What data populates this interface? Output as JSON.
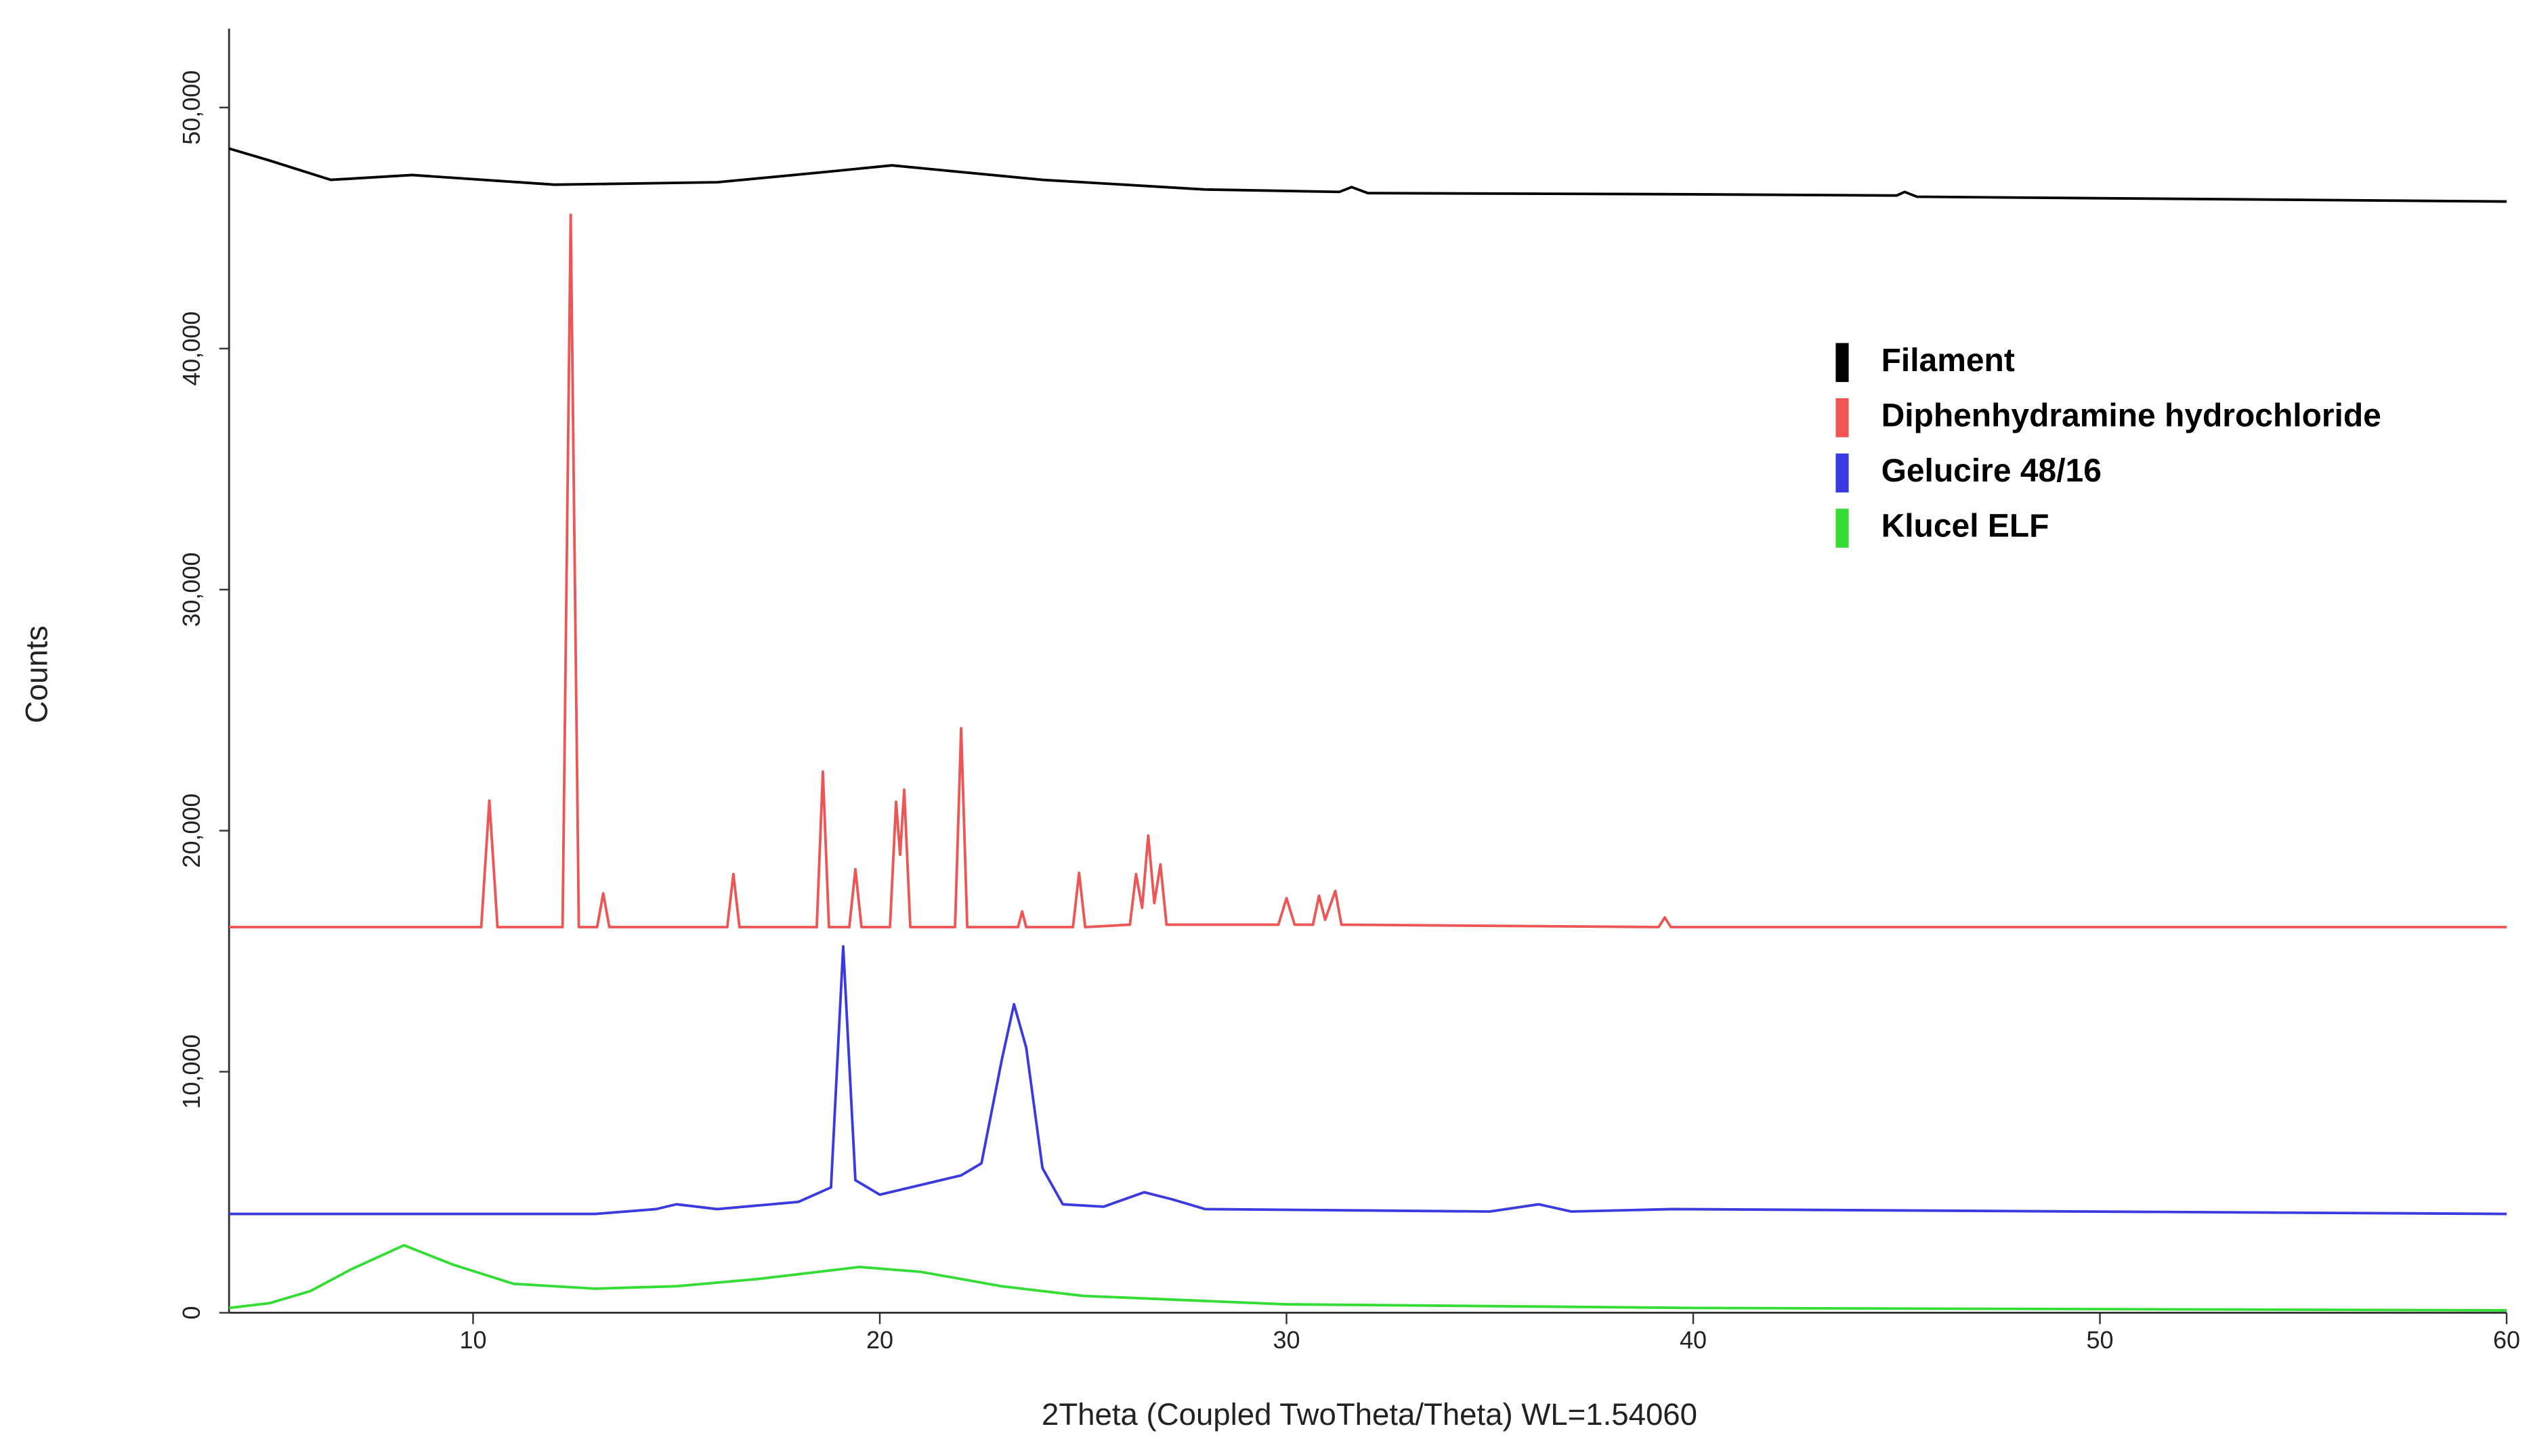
{
  "chart_data": {
    "type": "line",
    "xlabel": "2Theta (Coupled TwoTheta/Theta) WL=1.54060",
    "ylabel": "Counts",
    "xlim": [
      4,
      60
    ],
    "xticks": [
      10,
      20,
      30,
      40,
      50,
      60
    ],
    "ylim": [
      0,
      53000
    ],
    "yticks": [
      0,
      {
        "value": 10000,
        "label": "10,000"
      },
      {
        "value": 20000,
        "label": "20,000"
      },
      {
        "value": 30000,
        "label": "30,000"
      },
      {
        "value": 40000,
        "label": "40,000"
      },
      {
        "value": 50000,
        "label": "50,000"
      }
    ],
    "legend": "upper right",
    "series": [
      {
        "name": "Filament",
        "color": "#000000",
        "x": [
          4,
          5,
          6.5,
          8.5,
          12,
          16,
          18.5,
          20.3,
          24,
          28,
          31.3,
          31.6,
          32,
          40,
          45,
          45.2,
          45.5,
          60
        ],
        "values": [
          48300,
          47800,
          47000,
          47200,
          46800,
          46900,
          47300,
          47600,
          47000,
          46600,
          46500,
          46700,
          46450,
          46400,
          46350,
          46500,
          46300,
          46100
        ]
      },
      {
        "name": "Diphenhydramine hydrochloride",
        "color": "#ee5555",
        "x": [
          4,
          10.2,
          10.4,
          10.6,
          12.2,
          12.4,
          12.6,
          13.05,
          13.2,
          13.35,
          16.25,
          16.4,
          16.55,
          18.45,
          18.6,
          18.75,
          19.25,
          19.4,
          19.55,
          20.25,
          20.4,
          20.5,
          20.6,
          20.75,
          21.85,
          22.0,
          22.15,
          23.4,
          23.5,
          23.6,
          24.75,
          24.9,
          25.05,
          26.15,
          26.3,
          26.45,
          26.6,
          26.75,
          26.9,
          27.05,
          29.8,
          30.0,
          30.2,
          30.65,
          30.8,
          30.95,
          31.2,
          31.35,
          39.15,
          39.3,
          39.45,
          60
        ],
        "values": [
          16000,
          16000,
          21250,
          16000,
          16000,
          45550,
          16000,
          16000,
          17400,
          16000,
          16000,
          18200,
          16000,
          16000,
          22450,
          16000,
          16000,
          18400,
          16000,
          16000,
          21200,
          19000,
          21700,
          16000,
          16000,
          24250,
          16000,
          16000,
          16650,
          16000,
          16000,
          18250,
          16000,
          16100,
          18200,
          16800,
          19800,
          17000,
          18600,
          16100,
          16100,
          17200,
          16100,
          16100,
          17300,
          16300,
          17500,
          16100,
          16000,
          16400,
          16000,
          16000
        ]
      },
      {
        "name": "Gelucire 48/16",
        "color": "#3a3ae0",
        "x": [
          4,
          13,
          14.5,
          15,
          16,
          18,
          18.8,
          19.1,
          19.4,
          20,
          21,
          22,
          22.5,
          23.0,
          23.3,
          23.6,
          24.0,
          24.5,
          25.5,
          26.5,
          27.2,
          28,
          35,
          36.2,
          37,
          39.5,
          60
        ],
        "values": [
          4100,
          4100,
          4300,
          4500,
          4300,
          4600,
          5200,
          15200,
          5500,
          4900,
          5300,
          5700,
          6200,
          10500,
          12800,
          11000,
          6000,
          4500,
          4400,
          5000,
          4700,
          4300,
          4200,
          4500,
          4200,
          4300,
          4100
        ]
      },
      {
        "name": "Klucel ELF",
        "color": "#33dd33",
        "x": [
          4,
          5,
          6,
          7,
          8.3,
          9.5,
          11,
          13,
          15,
          17,
          19.5,
          21,
          23,
          25,
          30,
          40,
          50,
          60
        ],
        "values": [
          200,
          400,
          900,
          1800,
          2800,
          2000,
          1200,
          1000,
          1100,
          1400,
          1900,
          1700,
          1100,
          700,
          350,
          200,
          150,
          100
        ]
      }
    ]
  }
}
